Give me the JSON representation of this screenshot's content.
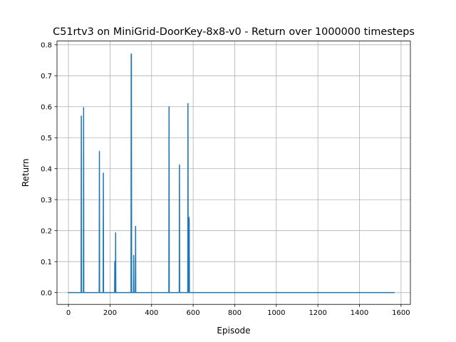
{
  "chart_data": {
    "type": "line",
    "title": "C51rtv3 on MiniGrid-DoorKey-8x8-v0 - Return over 1000000 timesteps",
    "xlabel": "Episode",
    "ylabel": "Return",
    "xlim": [
      -55,
      1645
    ],
    "ylim": [
      -0.038,
      0.812
    ],
    "grid": true,
    "xticks": [
      0,
      200,
      400,
      600,
      800,
      1000,
      1200,
      1400,
      1600
    ],
    "xtick_labels": [
      "0",
      "200",
      "400",
      "600",
      "800",
      "1000",
      "1200",
      "1400",
      "1600"
    ],
    "yticks": [
      0.0,
      0.1,
      0.2,
      0.3,
      0.4,
      0.5,
      0.6,
      0.7,
      0.8
    ],
    "ytick_labels": [
      "0.0",
      "0.1",
      "0.2",
      "0.3",
      "0.4",
      "0.5",
      "0.6",
      "0.7",
      "0.8"
    ],
    "series_color": "#1f77b4",
    "series": [
      {
        "x": [
          0,
          61,
          62,
          63,
          72,
          73,
          74,
          148,
          149,
          150,
          167,
          168,
          169,
          222,
          223,
          224,
          226,
          227,
          228,
          301,
          302,
          303,
          304,
          313,
          314,
          315,
          322,
          323,
          324,
          483,
          484,
          485,
          533,
          534,
          535,
          574,
          575,
          576,
          579,
          580,
          581,
          582,
          1567
        ],
        "y": [
          0,
          0,
          0.57,
          0,
          0,
          0.597,
          0,
          0,
          0.456,
          0,
          0,
          0.386,
          0,
          0,
          0.1,
          0,
          0,
          0.193,
          0,
          0,
          0.77,
          0.77,
          0,
          0,
          0.12,
          0,
          0,
          0.214,
          0,
          0,
          0.6,
          0,
          0,
          0.412,
          0,
          0,
          0.61,
          0,
          0,
          0.243,
          0.235,
          0,
          0
        ]
      }
    ]
  }
}
